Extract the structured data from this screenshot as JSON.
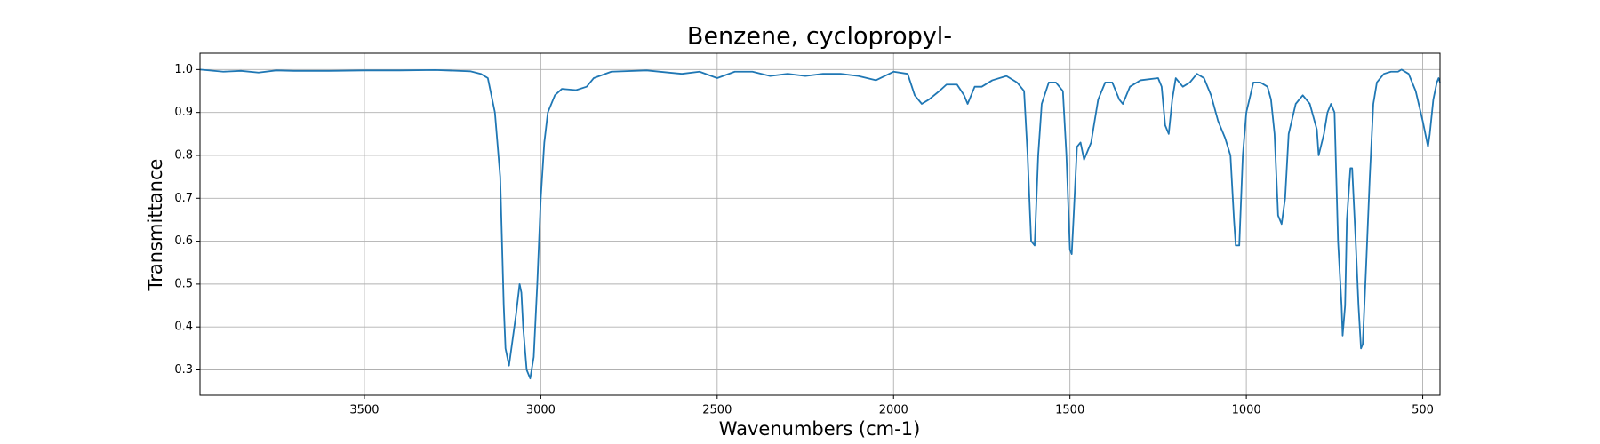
{
  "chart_data": {
    "type": "line",
    "title": "Benzene, cyclopropyl-",
    "x_label": "Wavenumbers (cm-1)",
    "y_label": "Transmittance",
    "color": "#1f77b4",
    "grid": true,
    "x": [
      3966,
      3900,
      3850,
      3800,
      3750,
      3700,
      3600,
      3500,
      3400,
      3300,
      3200,
      3170,
      3150,
      3130,
      3115,
      3105,
      3100,
      3090,
      3080,
      3070,
      3060,
      3055,
      3050,
      3040,
      3030,
      3020,
      3010,
      3000,
      2990,
      2980,
      2960,
      2940,
      2900,
      2870,
      2850,
      2800,
      2700,
      2600,
      2550,
      2500,
      2450,
      2400,
      2350,
      2300,
      2250,
      2200,
      2150,
      2100,
      2050,
      2000,
      1960,
      1940,
      1920,
      1900,
      1870,
      1850,
      1820,
      1800,
      1790,
      1770,
      1750,
      1720,
      1680,
      1650,
      1630,
      1620,
      1610,
      1600,
      1590,
      1580,
      1560,
      1540,
      1520,
      1510,
      1500,
      1495,
      1490,
      1480,
      1470,
      1460,
      1440,
      1420,
      1400,
      1380,
      1360,
      1350,
      1330,
      1300,
      1250,
      1240,
      1230,
      1220,
      1210,
      1200,
      1180,
      1160,
      1140,
      1120,
      1100,
      1080,
      1060,
      1045,
      1035,
      1030,
      1020,
      1010,
      1000,
      980,
      960,
      940,
      930,
      920,
      910,
      900,
      890,
      880,
      860,
      840,
      820,
      800,
      795,
      780,
      770,
      760,
      750,
      740,
      730,
      727,
      720,
      715,
      705,
      700,
      690,
      682,
      675,
      670,
      660,
      650,
      640,
      630,
      610,
      590,
      570,
      560,
      540,
      520,
      500,
      490,
      485,
      480,
      470,
      460,
      455,
      451
    ],
    "values": [
      1.0,
      0.995,
      0.997,
      0.993,
      0.998,
      0.997,
      0.997,
      0.998,
      0.998,
      0.999,
      0.996,
      0.99,
      0.98,
      0.9,
      0.75,
      0.45,
      0.35,
      0.31,
      0.37,
      0.43,
      0.5,
      0.48,
      0.4,
      0.3,
      0.28,
      0.33,
      0.5,
      0.7,
      0.83,
      0.9,
      0.94,
      0.955,
      0.952,
      0.96,
      0.98,
      0.995,
      0.998,
      0.99,
      0.995,
      0.98,
      0.995,
      0.995,
      0.985,
      0.99,
      0.985,
      0.99,
      0.99,
      0.985,
      0.975,
      0.995,
      0.99,
      0.94,
      0.92,
      0.93,
      0.95,
      0.965,
      0.965,
      0.94,
      0.92,
      0.96,
      0.96,
      0.975,
      0.985,
      0.97,
      0.95,
      0.8,
      0.6,
      0.59,
      0.8,
      0.92,
      0.97,
      0.97,
      0.95,
      0.8,
      0.58,
      0.57,
      0.65,
      0.82,
      0.83,
      0.79,
      0.83,
      0.93,
      0.97,
      0.97,
      0.93,
      0.92,
      0.96,
      0.975,
      0.98,
      0.96,
      0.87,
      0.85,
      0.93,
      0.98,
      0.96,
      0.97,
      0.99,
      0.98,
      0.94,
      0.88,
      0.84,
      0.8,
      0.65,
      0.59,
      0.59,
      0.8,
      0.9,
      0.97,
      0.97,
      0.96,
      0.93,
      0.85,
      0.66,
      0.64,
      0.7,
      0.85,
      0.92,
      0.94,
      0.92,
      0.86,
      0.8,
      0.85,
      0.9,
      0.92,
      0.9,
      0.6,
      0.45,
      0.38,
      0.45,
      0.65,
      0.77,
      0.77,
      0.6,
      0.45,
      0.35,
      0.36,
      0.55,
      0.75,
      0.92,
      0.97,
      0.99,
      0.995,
      0.995,
      1.0,
      0.99,
      0.95,
      0.88,
      0.84,
      0.82,
      0.85,
      0.93,
      0.97,
      0.98,
      0.97
    ],
    "xlim": [
      3966,
      451
    ],
    "ylim": [
      0.241,
      1.038
    ],
    "xticks": [
      3500,
      3000,
      2500,
      2000,
      1500,
      1000,
      500
    ],
    "yticks": [
      0.3,
      0.4,
      0.5,
      0.6,
      0.7,
      0.8,
      0.9,
      {
        "value": 1.0,
        "label": "1.0"
      }
    ]
  }
}
